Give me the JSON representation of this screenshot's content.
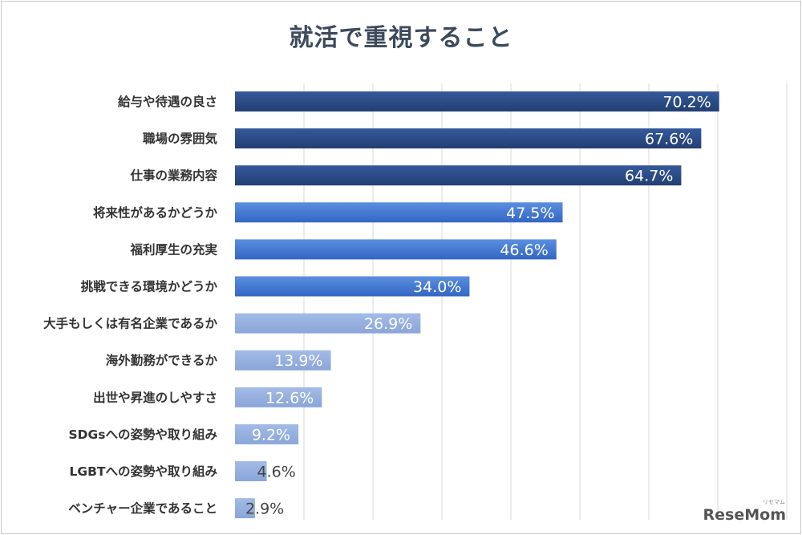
{
  "chart_data": {
    "type": "bar",
    "orientation": "horizontal",
    "title": "就活で重視すること",
    "xlim": [
      0,
      80
    ],
    "grid": true,
    "value_suffix": "%",
    "categories": [
      "給与や待遇の良さ",
      "職場の雰囲気",
      "仕事の業務内容",
      "将来性があるかどうか",
      "福利厚生の充実",
      "挑戦できる環境かどうか",
      "大手もしくは有名企業であるか",
      "海外勤務ができるか",
      "出世や昇進のしやすさ",
      "SDGsへの姿勢や取り組み",
      "LGBTへの姿勢や取り組み",
      "ベンチャー企業であること"
    ],
    "values": [
      70.2,
      67.6,
      64.7,
      47.5,
      46.6,
      34.0,
      26.9,
      13.9,
      12.6,
      9.2,
      4.6,
      2.9
    ],
    "value_labels": [
      "70.2%",
      "67.6%",
      "64.7%",
      "47.5%",
      "46.6%",
      "34.0%",
      "26.9%",
      "13.9%",
      "12.6%",
      "9.2%",
      "4.6%",
      "2.9%"
    ],
    "colors": {
      "top": "#2b4f8e",
      "mid": "#3a6fc9",
      "low": "#93acdd"
    }
  },
  "watermark": {
    "brand": "ReseMom",
    "sub": "リセマム"
  }
}
